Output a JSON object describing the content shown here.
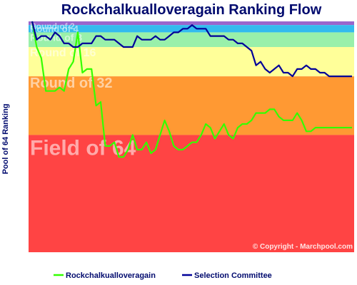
{
  "chart_data": {
    "type": "line",
    "title": "Rockchalkualloveragain Ranking Flow",
    "ylabel": "Pool of 64 Ranking",
    "copyright": "© Copyright - Marchpool.com",
    "ylim": [
      64,
      1
    ],
    "bands": [
      {
        "label": "Round of 2",
        "from": 1,
        "to": 2,
        "color": "#9966cc"
      },
      {
        "label": "Round of 4",
        "from": 2,
        "to": 4,
        "color": "#33bbee"
      },
      {
        "label": "Round of 8",
        "from": 4,
        "to": 8,
        "color": "#99f0aa"
      },
      {
        "label": "Round of 16",
        "from": 8,
        "to": 16,
        "color": "#ffff99"
      },
      {
        "label": "Round of 32",
        "from": 16,
        "to": 32,
        "color": "#ff9933"
      },
      {
        "label": "Field of 64",
        "from": 32,
        "to": 64,
        "color": "#ff4444"
      }
    ],
    "series": [
      {
        "name": "Rockchalkualloveragain",
        "color": "#33ff00",
        "values": [
          1,
          8,
          11,
          20,
          20,
          20,
          19,
          20,
          14,
          12,
          4,
          15,
          14,
          14,
          24,
          23,
          35,
          35,
          34,
          38,
          38,
          36,
          32,
          36,
          36,
          34,
          37,
          36,
          32,
          28,
          31,
          35,
          36,
          36,
          35,
          34,
          34,
          32,
          29,
          30,
          33,
          31,
          29,
          32,
          33,
          30,
          29,
          29,
          28,
          26,
          26,
          26,
          25,
          25,
          27,
          28,
          28,
          28,
          26,
          28,
          31,
          31,
          30,
          30,
          30,
          30,
          30,
          30,
          30,
          30,
          30
        ]
      },
      {
        "name": "Selection Committee",
        "color": "#000099",
        "values": [
          1,
          6,
          5,
          5,
          6,
          4,
          5,
          7,
          7,
          8,
          8,
          7,
          7,
          7,
          5,
          5,
          6,
          6,
          6,
          7,
          8,
          8,
          8,
          5,
          6,
          6,
          6,
          5,
          6,
          6,
          5,
          4,
          4,
          3,
          3,
          2,
          3,
          3,
          3,
          5,
          5,
          5,
          5,
          6,
          6,
          7,
          7,
          8,
          9,
          13,
          12,
          14,
          15,
          14,
          13,
          15,
          15,
          16,
          14,
          14,
          13,
          14,
          14,
          15,
          15,
          16,
          16,
          16,
          16,
          16,
          16
        ]
      }
    ],
    "legend_position": "bottom"
  }
}
